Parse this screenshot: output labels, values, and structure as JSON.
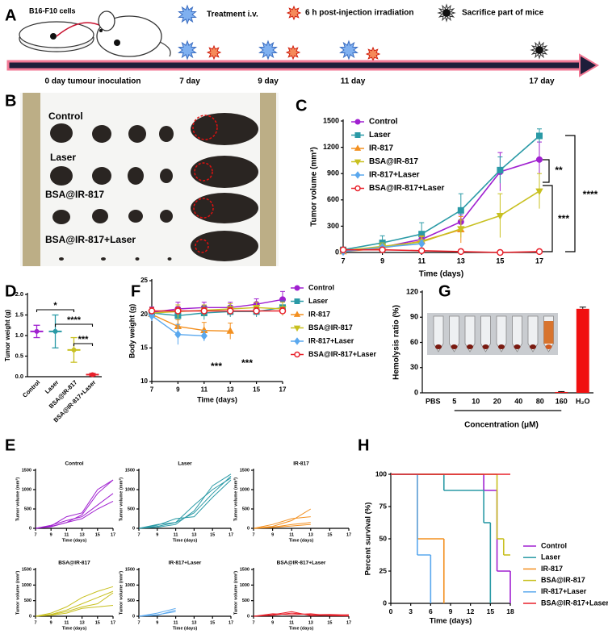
{
  "timeline": {
    "label": "A",
    "cell_label": "B16-F10 cells",
    "legend": [
      "Treatment i.v.",
      "6 h post-injection irradiation",
      "Sacrifice part of  mice"
    ],
    "days": [
      "0 day tumour inoculation",
      "7 day",
      "9 day",
      "11 day",
      "17 day"
    ]
  },
  "photo": {
    "label": "B",
    "groups": [
      "Control",
      "Laser",
      "BSA@IR-817",
      "BSA@IR-817+Laser"
    ]
  },
  "chart_data": [
    {
      "type": "line",
      "label": "C",
      "xlabel": "Time (days)",
      "ylabel": "Tumor volume (mm³)",
      "x": [
        7,
        9,
        11,
        13,
        15,
        17
      ],
      "xlim": [
        7,
        17
      ],
      "xticks": [
        7,
        9,
        11,
        13,
        15,
        17
      ],
      "ylim": [
        0,
        1500
      ],
      "yticks": [
        0,
        300,
        600,
        900,
        1200,
        1500
      ],
      "series": [
        {
          "name": "Control",
          "color": "#a020d0",
          "marker": "circle",
          "values": [
            20,
            60,
            150,
            350,
            920,
            1060
          ],
          "errors": [
            10,
            20,
            40,
            80,
            220,
            200
          ]
        },
        {
          "name": "Laser",
          "color": "#2a9aa6",
          "marker": "square",
          "values": [
            30,
            110,
            210,
            480,
            940,
            1330
          ],
          "errors": [
            10,
            80,
            130,
            190,
            150,
            80
          ]
        },
        {
          "name": "IR-817",
          "color": "#f39020",
          "marker": "triangle",
          "values": [
            10,
            50,
            130,
            260,
            null,
            null
          ],
          "errors": [
            5,
            30,
            60,
            150,
            null,
            null
          ]
        },
        {
          "name": "BSA@IR-817",
          "color": "#c8c020",
          "marker": "invtriangle",
          "values": [
            20,
            70,
            120,
            270,
            420,
            700
          ],
          "errors": [
            10,
            40,
            60,
            100,
            250,
            200
          ]
        },
        {
          "name": "IR-817+Laser",
          "color": "#5aa8ee",
          "marker": "diamond",
          "values": [
            10,
            60,
            100,
            null,
            null,
            null
          ],
          "errors": [
            5,
            20,
            40,
            null,
            null,
            null
          ]
        },
        {
          "name": "BSA@IR-817+Laser",
          "color": "#e8202a",
          "marker": "open-circle",
          "values": [
            30,
            30,
            20,
            10,
            0,
            10
          ],
          "errors": [
            5,
            5,
            5,
            5,
            5,
            5
          ]
        }
      ],
      "annotations": [
        "**",
        "***",
        "****"
      ]
    },
    {
      "type": "dotplot",
      "label": "D",
      "ylabel": "Tumor weight (g)",
      "categories": [
        "Control",
        "Laser",
        "BSA@IR-817",
        "BSA@IR-817+Laser"
      ],
      "values": [
        1.1,
        1.1,
        0.65,
        0.05
      ],
      "errors": [
        0.15,
        0.4,
        0.3,
        0.03
      ],
      "colors": [
        "#a020d0",
        "#2a9aa6",
        "#c8c020",
        "#e8202a"
      ],
      "ylim": [
        0,
        2
      ],
      "yticks": [
        {
          "value": 0,
          "label": "0.0"
        },
        0.5,
        {
          "value": 1,
          "label": "1.0"
        },
        1.5,
        {
          "value": 2,
          "label": "2.0"
        }
      ],
      "annotations": [
        "*",
        "****",
        "***"
      ]
    },
    {
      "type": "line",
      "label": "F",
      "xlabel": "Time (days)",
      "ylabel": "Body weight (g)",
      "x": [
        7,
        9,
        11,
        13,
        15,
        17
      ],
      "xlim": [
        7,
        17
      ],
      "xticks": [
        7,
        9,
        11,
        13,
        15,
        17
      ],
      "ylim": [
        10,
        25
      ],
      "yticks": [
        10,
        15,
        20,
        25
      ],
      "series": [
        {
          "name": "Control",
          "color": "#a020d0",
          "marker": "circle",
          "values": [
            20.3,
            20.8,
            21.0,
            21.0,
            21.5,
            22.2
          ],
          "errors": [
            0.8,
            1.0,
            0.8,
            0.8,
            0.8,
            1.2
          ]
        },
        {
          "name": "Laser",
          "color": "#2a9aa6",
          "marker": "square",
          "values": [
            20.2,
            19.8,
            20.2,
            20.4,
            20.4,
            21.0
          ],
          "errors": [
            0.8,
            1.0,
            1.0,
            0.8,
            0.8,
            1.0
          ]
        },
        {
          "name": "IR-817",
          "color": "#f39020",
          "marker": "triangle",
          "values": [
            20.0,
            18.2,
            17.6,
            17.5,
            null,
            null
          ],
          "errors": [
            0.8,
            1.0,
            1.2,
            1.2,
            null,
            null
          ]
        },
        {
          "name": "BSA@IR-817",
          "color": "#c8c020",
          "marker": "invtriangle",
          "values": [
            20.2,
            20.4,
            20.6,
            20.8,
            21.0,
            20.8
          ],
          "errors": [
            0.8,
            1.0,
            0.8,
            0.8,
            0.8,
            1.0
          ]
        },
        {
          "name": "IR-817+Laser",
          "color": "#5aa8ee",
          "marker": "diamond",
          "values": [
            19.8,
            17.0,
            16.8,
            null,
            null,
            null
          ],
          "errors": [
            0.8,
            1.5,
            0.8,
            null,
            null,
            null
          ]
        },
        {
          "name": "BSA@IR-817+Laser",
          "color": "#e8202a",
          "marker": "open-circle",
          "values": [
            20.5,
            20.5,
            20.5,
            20.5,
            20.5,
            20.5
          ],
          "errors": [
            0.5,
            0.5,
            0.5,
            0.5,
            0.5,
            0.5
          ]
        }
      ],
      "annotations": [
        "***",
        "***"
      ]
    },
    {
      "type": "bar",
      "label": "G",
      "xlabel": "Concentration (μM)",
      "ylabel": "Hemolysis ratio (%)",
      "categories": [
        "PBS",
        "5",
        "10",
        "20",
        "40",
        "80",
        "160",
        "H₂O"
      ],
      "values": [
        0,
        0,
        0,
        0,
        0,
        0,
        1,
        100
      ],
      "errors": [
        0,
        0,
        0,
        0,
        0,
        0,
        0.5,
        2
      ],
      "color": "#f01010",
      "ylim": [
        0,
        120
      ],
      "yticks": [
        0,
        30,
        60,
        90,
        120
      ]
    },
    {
      "type": "line",
      "label": "E",
      "title": "Control",
      "xlabel": "Time (days)",
      "ylabel": "Tumor volume (mm³)",
      "color": "#a020d0",
      "x": [
        7,
        9,
        11,
        13,
        15,
        17
      ],
      "xlim": [
        7,
        17
      ],
      "xticks": [
        7,
        9,
        11,
        13,
        15,
        17
      ],
      "ylim": [
        0,
        1500
      ],
      "yticks": [
        0,
        500,
        1000,
        1500
      ],
      "series": [
        {
          "values": [
            0,
            50,
            150,
            350,
            900,
            1250
          ]
        },
        {
          "values": [
            0,
            80,
            200,
            300,
            600,
            900
          ]
        },
        {
          "values": [
            0,
            60,
            300,
            400,
            1000,
            1250
          ]
        },
        {
          "values": [
            0,
            40,
            150,
            250,
            500,
            700
          ]
        }
      ]
    },
    {
      "type": "line",
      "title": "Laser",
      "xlabel": "Time (days)",
      "ylabel": "Tumor volume (mm³)",
      "color": "#2a9aa6",
      "x": [
        7,
        9,
        11,
        13,
        15,
        17
      ],
      "xlim": [
        7,
        17
      ],
      "xticks": [
        7,
        9,
        11,
        13,
        15,
        17
      ],
      "ylim": [
        0,
        1500
      ],
      "yticks": [
        0,
        500,
        1000,
        1500
      ],
      "series": [
        {
          "values": [
            0,
            100,
            150,
            400,
            900,
            1350
          ]
        },
        {
          "values": [
            0,
            50,
            150,
            600,
            1000,
            1300
          ]
        },
        {
          "values": [
            0,
            80,
            250,
            300,
            800,
            1250
          ]
        },
        {
          "values": [
            0,
            30,
            100,
            450,
            1100,
            1400
          ]
        }
      ]
    },
    {
      "type": "line",
      "title": "IR-817",
      "xlabel": "Time (days)",
      "ylabel": "Tumor volume (mm³)",
      "color": "#f39020",
      "x": [
        7,
        9,
        11,
        13,
        15,
        17
      ],
      "xlim": [
        7,
        17
      ],
      "xticks": [
        7,
        9,
        11,
        13,
        15,
        17
      ],
      "ylim": [
        0,
        1500
      ],
      "yticks": [
        0,
        500,
        1000,
        1500
      ],
      "series": [
        {
          "values": [
            0,
            50,
            200,
            500,
            null,
            null
          ]
        },
        {
          "values": [
            0,
            100,
            250,
            300,
            null,
            null
          ]
        },
        {
          "values": [
            0,
            30,
            100,
            150,
            null,
            null
          ]
        },
        {
          "values": [
            0,
            20,
            60,
            100,
            null,
            null
          ]
        }
      ]
    },
    {
      "type": "line",
      "title": "BSA@IR-817",
      "xlabel": "Time (days)",
      "ylabel": "Tumor volume (mm³)",
      "color": "#c8c020",
      "x": [
        7,
        9,
        11,
        13,
        15,
        17
      ],
      "xlim": [
        7,
        17
      ],
      "xticks": [
        7,
        9,
        11,
        13,
        15,
        17
      ],
      "ylim": [
        0,
        1500
      ],
      "yticks": [
        0,
        500,
        1000,
        1500
      ],
      "series": [
        {
          "values": [
            0,
            100,
            300,
            600,
            800,
            950
          ]
        },
        {
          "values": [
            0,
            50,
            150,
            300,
            400,
            750
          ]
        },
        {
          "values": [
            0,
            30,
            100,
            250,
            300,
            350
          ]
        },
        {
          "values": [
            0,
            60,
            200,
            400,
            600,
            800
          ]
        }
      ]
    },
    {
      "type": "line",
      "title": "IR-817+Laser",
      "xlabel": "Time (days)",
      "ylabel": "Tumor volume (mm³)",
      "color": "#5aa8ee",
      "x": [
        7,
        9,
        11,
        13,
        15,
        17
      ],
      "xlim": [
        7,
        17
      ],
      "xticks": [
        7,
        9,
        11,
        13,
        15,
        17
      ],
      "ylim": [
        0,
        1500
      ],
      "yticks": [
        0,
        500,
        1000,
        1500
      ],
      "series": [
        {
          "values": [
            0,
            100,
            250,
            null,
            null,
            null
          ]
        },
        {
          "values": [
            0,
            50,
            150,
            null,
            null,
            null
          ]
        },
        {
          "values": [
            0,
            30,
            200,
            null,
            null,
            null
          ]
        }
      ]
    },
    {
      "type": "line",
      "title": "BSA@IR-817+Laser",
      "xlabel": "Time (days)",
      "ylabel": "Tumor volume (mm³)",
      "color": "#e8202a",
      "x": [
        7,
        9,
        11,
        13,
        15,
        17
      ],
      "xlim": [
        7,
        17
      ],
      "xticks": [
        7,
        9,
        11,
        13,
        15,
        17
      ],
      "ylim": [
        0,
        1500
      ],
      "yticks": [
        0,
        500,
        1000,
        1500
      ],
      "series": [
        {
          "values": [
            0,
            50,
            150,
            20,
            30,
            50
          ]
        },
        {
          "values": [
            0,
            80,
            50,
            80,
            20,
            10
          ]
        },
        {
          "values": [
            0,
            30,
            100,
            50,
            60,
            40
          ]
        }
      ]
    },
    {
      "type": "step",
      "label": "H",
      "xlabel": "Time (days)",
      "ylabel": "Percent survival (%)",
      "xlim": [
        0,
        18
      ],
      "xticks": [
        0,
        3,
        6,
        9,
        12,
        15,
        18
      ],
      "ylim": [
        0,
        100
      ],
      "yticks": [
        0,
        25,
        50,
        75,
        100
      ],
      "series": [
        {
          "name": "Control",
          "color": "#a020d0",
          "x": [
            0,
            14,
            16,
            18
          ],
          "values": [
            100,
            87.5,
            25,
            0
          ]
        },
        {
          "name": "Laser",
          "color": "#2a9aa6",
          "x": [
            0,
            8,
            14,
            15
          ],
          "values": [
            100,
            87.5,
            62.5,
            0
          ]
        },
        {
          "name": "IR-817",
          "color": "#f39020",
          "x": [
            0,
            4,
            8
          ],
          "values": [
            100,
            50,
            0
          ]
        },
        {
          "name": "BSA@IR-817",
          "color": "#c8c020",
          "x": [
            0,
            16,
            17,
            18
          ],
          "values": [
            100,
            50,
            37.5,
            37.5
          ]
        },
        {
          "name": "IR-817+Laser",
          "color": "#5aa8ee",
          "x": [
            0,
            4,
            6
          ],
          "values": [
            100,
            37.5,
            0
          ]
        },
        {
          "name": "BSA@IR-817+Laser",
          "color": "#e8202a",
          "x": [
            0,
            18
          ],
          "values": [
            100,
            100
          ]
        }
      ]
    }
  ]
}
